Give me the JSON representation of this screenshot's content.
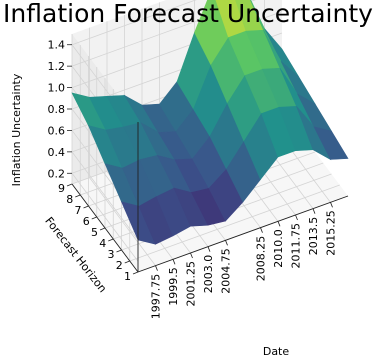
{
  "chart_data": {
    "type": "surface3d",
    "title": "Inflation Forecast Uncertainty",
    "xlabel": "Date",
    "ylabel": "Forecast Horizon",
    "zlabel": "Inflation Uncertainty",
    "x_ticks": [
      "1997.75",
      "1999.5",
      "2001.25",
      "2003.0",
      "2004.75",
      "2008.25",
      "2010.0",
      "2011.75",
      "2013.5",
      "2015.25"
    ],
    "y_ticks": [
      "1",
      "2",
      "3",
      "4",
      "5",
      "6",
      "7",
      "8",
      "9"
    ],
    "z_ticks": [
      "0.2",
      "0.4",
      "0.6",
      "0.8",
      "1.0",
      "1.2",
      "1.4"
    ],
    "xlim": [
      1996.0,
      2017.0
    ],
    "ylim": [
      1,
      9
    ],
    "zlim": [
      0.1,
      1.5
    ],
    "colormap": "viridis",
    "grid": true,
    "surface": {
      "dates": [
        1996.0,
        1997.75,
        1999.5,
        2001.25,
        2003.0,
        2004.75,
        2006.5,
        2008.25,
        2010.0,
        2011.75,
        2013.5,
        2015.25,
        2017.0
      ],
      "horizons": [
        1,
        3,
        5,
        7,
        9
      ],
      "z": [
        [
          0.4,
          0.55,
          0.7,
          0.85,
          0.95
        ],
        [
          0.3,
          0.45,
          0.6,
          0.75,
          0.85
        ],
        [
          0.32,
          0.48,
          0.62,
          0.72,
          0.8
        ],
        [
          0.35,
          0.5,
          0.6,
          0.7,
          0.75
        ],
        [
          0.3,
          0.4,
          0.5,
          0.55,
          0.6
        ],
        [
          0.28,
          0.38,
          0.45,
          0.5,
          0.55
        ],
        [
          0.4,
          0.5,
          0.6,
          0.65,
          0.7
        ],
        [
          0.55,
          0.7,
          0.85,
          1.0,
          1.1
        ],
        [
          0.7,
          0.9,
          1.05,
          1.2,
          1.45
        ],
        [
          0.7,
          0.9,
          1.05,
          1.2,
          1.45
        ],
        [
          0.65,
          0.85,
          1.0,
          1.15,
          1.3
        ],
        [
          0.5,
          0.6,
          0.7,
          0.8,
          0.9
        ],
        [
          0.45,
          0.5,
          0.55,
          0.6,
          0.65
        ]
      ]
    }
  }
}
